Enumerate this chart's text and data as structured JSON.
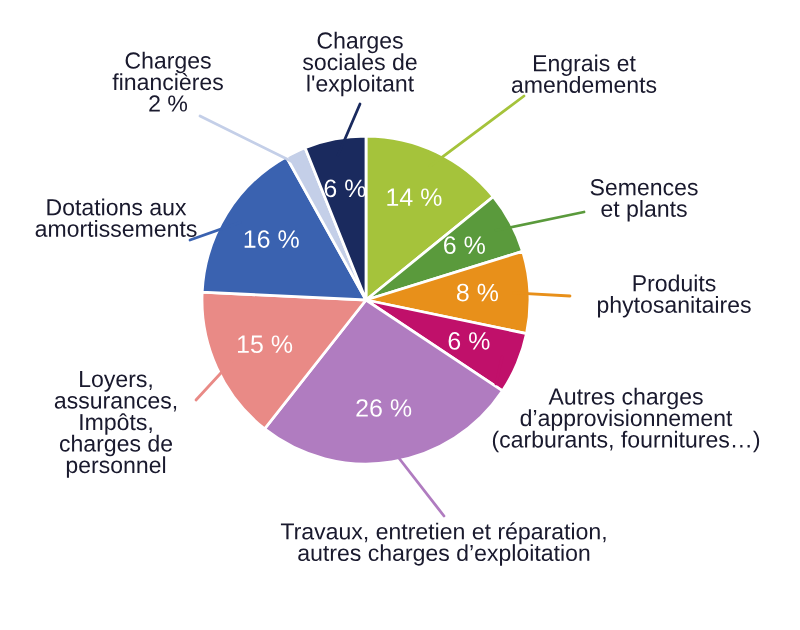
{
  "chart_data": {
    "type": "pie",
    "categories": [
      "Engrais et\namendements",
      "Semences\net plants",
      "Produits\nphytosanitaires",
      "Autres charges\nd’approvisionnement\n(carburants, fournitures…)",
      "Travaux, entretien et réparation,\nautres charges d’exploitation",
      "Loyers,\nassurances,\nImpôts,\ncharges de\npersonnel",
      "Dotations aux\namortissements",
      "Charges\nfinancières",
      "Charges\nsociales de\nl'exploitant"
    ],
    "values": [
      14,
      6,
      8,
      6,
      26,
      15,
      16,
      2,
      6
    ],
    "value_labels": [
      "14 %",
      "6 %",
      "8 %",
      "6 %",
      "26 %",
      "15 %",
      "16 %",
      "2 %",
      "6 %"
    ],
    "colors": [
      "#a5c33b",
      "#5a9a3c",
      "#e8901a",
      "#c0106a",
      "#b07cc0",
      "#e98a86",
      "#3a62b0",
      "#c4cfe8",
      "#1a2a5e"
    ]
  }
}
